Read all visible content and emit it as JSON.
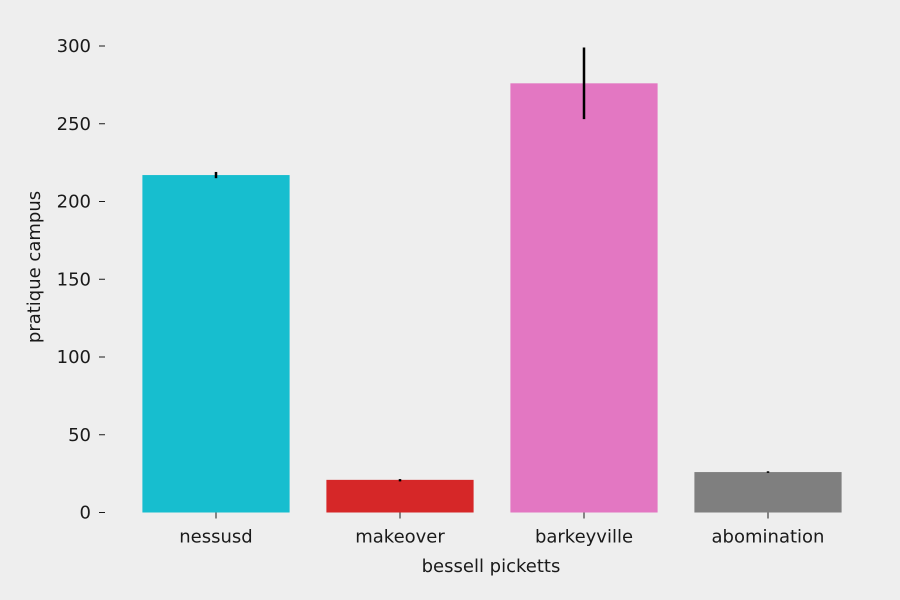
{
  "chart_data": {
    "type": "bar",
    "title": "",
    "xlabel": "bessell picketts",
    "ylabel": "pratique campus",
    "categories": [
      "nessusd",
      "makeover",
      "barkeyville",
      "abomination"
    ],
    "values": [
      217,
      21,
      276,
      26
    ],
    "errors": [
      [
        215,
        219
      ],
      [
        20,
        21.5
      ],
      [
        253,
        299
      ],
      [
        25.5,
        26.5
      ]
    ],
    "colors": [
      "#17becf",
      "#d62728",
      "#e377c2",
      "#7f7f7f"
    ],
    "ylim": [
      0,
      310
    ],
    "yticks": [
      0,
      50,
      100,
      150,
      200,
      250,
      300
    ],
    "grid": false,
    "background": "#eeeeee"
  }
}
